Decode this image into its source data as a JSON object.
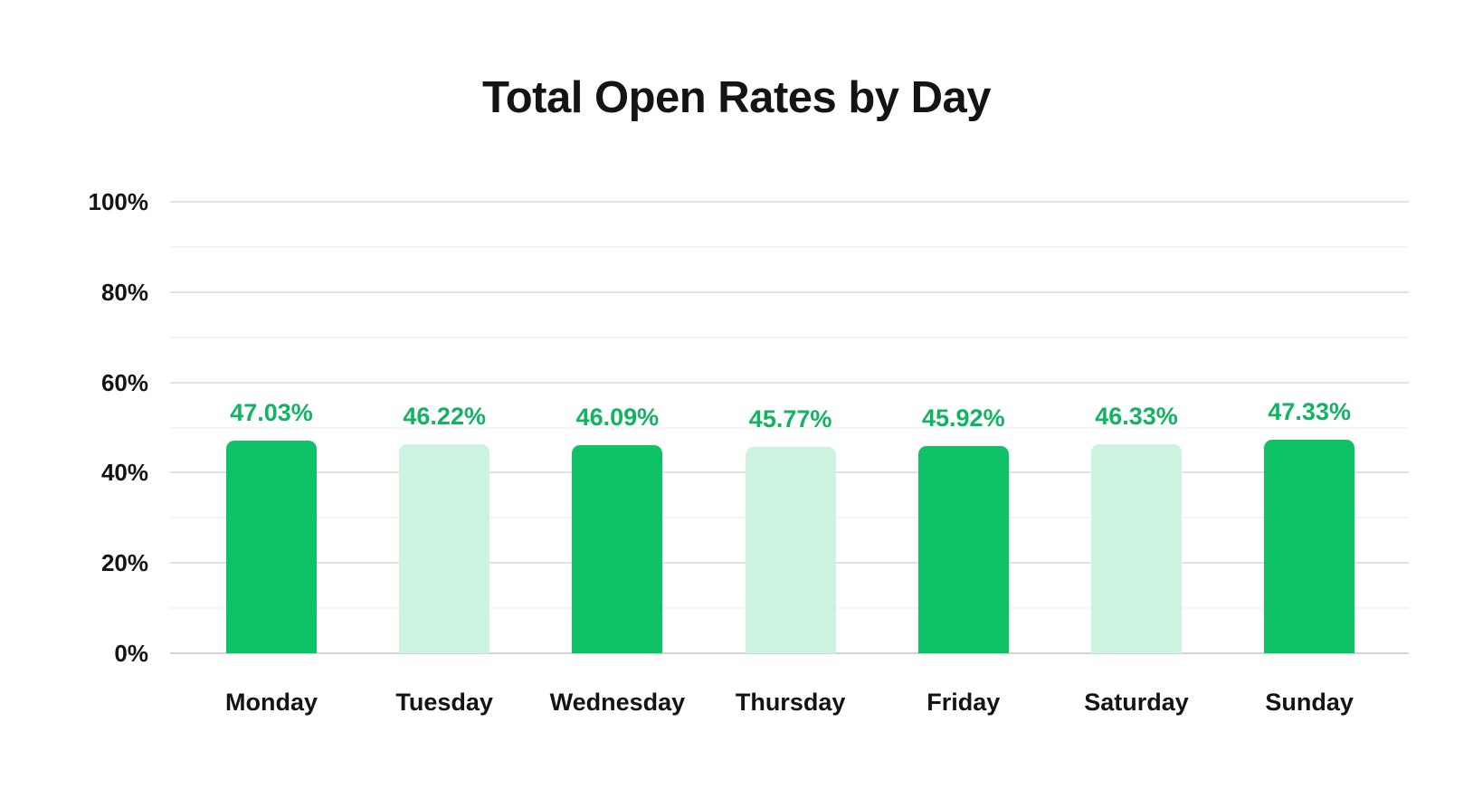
{
  "chart_data": {
    "type": "bar",
    "title": "Total Open Rates by Day",
    "categories": [
      "Monday",
      "Tuesday",
      "Wednesday",
      "Thursday",
      "Friday",
      "Saturday",
      "Sunday"
    ],
    "values": [
      47.03,
      46.22,
      46.09,
      45.77,
      45.92,
      46.33,
      47.33
    ],
    "value_labels": [
      "47.03%",
      "46.22%",
      "46.09%",
      "45.77%",
      "45.92%",
      "46.33%",
      "47.33%"
    ],
    "bar_styles": [
      "dark",
      "light",
      "dark",
      "light",
      "dark",
      "light",
      "dark"
    ],
    "y_ticks": [
      {
        "value": 0,
        "label": "0%"
      },
      {
        "value": 20,
        "label": "20%"
      },
      {
        "value": 40,
        "label": "40%"
      },
      {
        "value": 60,
        "label": "60%"
      },
      {
        "value": 80,
        "label": "80%"
      },
      {
        "value": 100,
        "label": "100%"
      }
    ],
    "ylim": [
      0,
      100
    ],
    "y_minor_step": 10,
    "grid": true,
    "legend": false,
    "xlabel": "",
    "ylabel": "",
    "colors": {
      "bar_dark": "#0fc167",
      "bar_light": "#ccf2e0",
      "value_label": "#12b463",
      "axis_text": "#141414",
      "grid_major": "#e2e2e2",
      "grid_minor": "#f4f4f4",
      "grid_baseline": "#d4d4d4",
      "background": "#ffffff"
    }
  }
}
